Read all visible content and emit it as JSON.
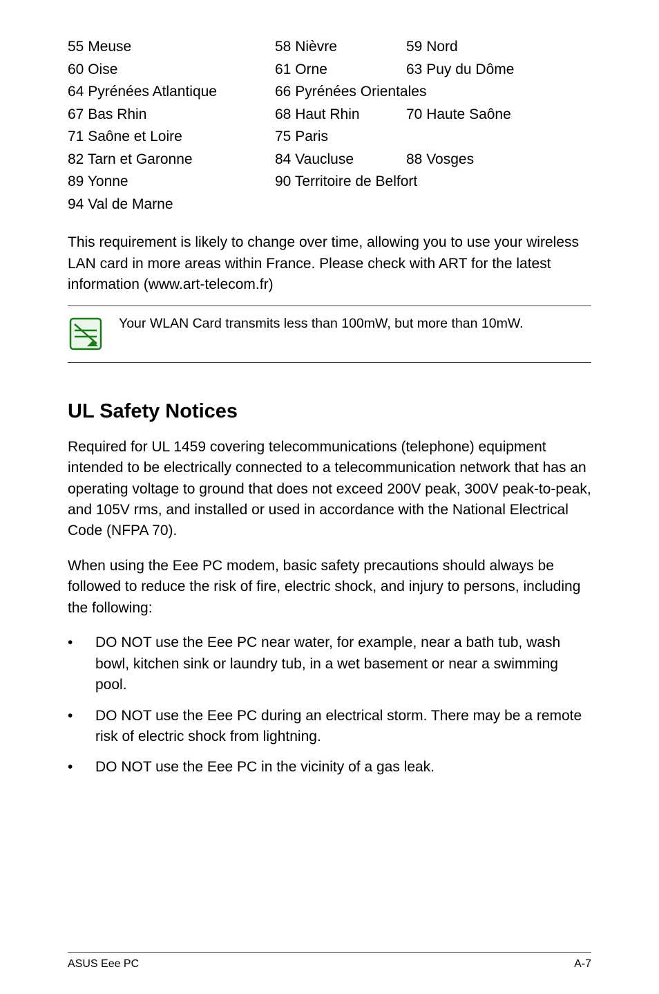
{
  "departments": {
    "rows": [
      {
        "c1": "55  Meuse",
        "c2": "58  Nièvre",
        "c3": "59  Nord"
      },
      {
        "c1": "60  Oise",
        "c2": "61  Orne",
        "c3": "63  Puy du Dôme"
      },
      {
        "c1": "64  Pyrénées Atlantique",
        "c23": "66  Pyrénées  Orientales"
      },
      {
        "c1": "67  Bas Rhin",
        "c2": "68  Haut Rhin",
        "c3": "70  Haute Saône"
      },
      {
        "c1": "71  Saône et Loire",
        "c2": "75  Paris",
        "c3": ""
      },
      {
        "c1": "82  Tarn et Garonne",
        "c2": "84  Vaucluse",
        "c3": "88  Vosges"
      },
      {
        "c1": "89  Yonne",
        "c23": "90  Territoire de Belfort"
      },
      {
        "c1": "94  Val de Marne",
        "c2": "",
        "c3": ""
      }
    ]
  },
  "requirement_para": "This requirement is likely to change over time, allowing you to use your wireless LAN card in more areas within France. Please check with ART for the latest information (www.art-telecom.fr)",
  "note_text": "Your WLAN Card transmits less than 100mW, but more than 10mW.",
  "heading": "UL Safety Notices",
  "ul_para1": "Required for UL 1459 covering telecommunications (telephone) equipment intended to be electrically connected to a telecommunication network that has an operating voltage to ground that does not exceed 200V peak, 300V peak-to-peak, and 105V rms, and installed or used in accordance with the National Electrical Code (NFPA 70).",
  "ul_para2": "When using the Eee PC modem, basic safety precautions should always be followed to reduce the risk of fire, electric shock, and injury to persons, including the following:",
  "bullets": [
    "DO NOT use the Eee PC near water, for example, near a bath tub, wash bowl, kitchen sink or laundry tub, in a wet basement or near a swimming pool.",
    "DO NOT use the Eee PC during an electrical storm. There may be a remote risk of electric shock from lightning.",
    "DO NOT use the Eee PC in the vicinity of a gas leak."
  ],
  "footer_left": "ASUS Eee PC",
  "footer_right": "A-7",
  "icon_stroke": "#1a7a1a",
  "icon_fill": "#eaf6ea"
}
